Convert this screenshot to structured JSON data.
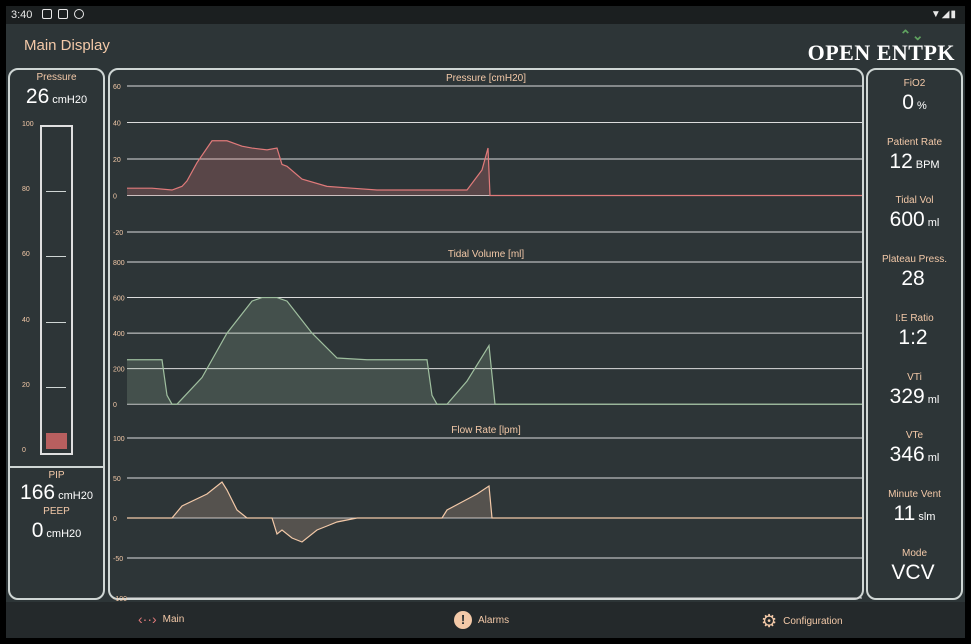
{
  "status_bar": {
    "time": "3:40"
  },
  "header": {
    "title": "Main Display",
    "logo_text": "OPEN ENTPK"
  },
  "left": {
    "pressure_label": "Pressure",
    "pressure_value": "26",
    "pressure_unit": "cmH20",
    "gauge": {
      "max": 100,
      "level_fraction": 0.05,
      "ticks": [
        "100",
        "80",
        "60",
        "40",
        "20",
        "0"
      ]
    },
    "pip_label": "PIP",
    "pip_value": "166",
    "pip_unit": "cmH20",
    "peep_label": "PEEP",
    "peep_value": "0",
    "peep_unit": "cmH20"
  },
  "chart_data": [
    {
      "type": "area",
      "title": "Pressure [cmH20]",
      "ylim": [
        -20,
        60
      ],
      "yticks": [
        "60",
        "40",
        "20",
        "0",
        "-20"
      ],
      "color": "#e07a7a",
      "x": [
        0,
        25,
        45,
        55,
        60,
        70,
        85,
        100,
        115,
        125,
        140,
        150,
        155,
        160,
        175,
        200,
        225,
        250,
        275,
        300,
        320,
        340,
        355,
        361,
        363,
        365,
        500,
        735
      ],
      "y": [
        4,
        4,
        3,
        5,
        8,
        18,
        30,
        30,
        27,
        26,
        25,
        26,
        17,
        16,
        9,
        5,
        4,
        3,
        3,
        3,
        3,
        3,
        14,
        26,
        0,
        0,
        0,
        0
      ]
    },
    {
      "type": "area",
      "title": "Tidal Volume [ml]",
      "ylim": [
        -100,
        800
      ],
      "yticks": [
        "800",
        "600",
        "400",
        "200",
        "0"
      ],
      "color": "#9fbf9f",
      "x": [
        0,
        35,
        40,
        45,
        50,
        75,
        100,
        125,
        135,
        150,
        160,
        185,
        210,
        240,
        270,
        300,
        305,
        310,
        320,
        340,
        362,
        368,
        735
      ],
      "y": [
        250,
        250,
        50,
        0,
        0,
        150,
        400,
        580,
        600,
        600,
        580,
        400,
        260,
        250,
        250,
        250,
        50,
        0,
        0,
        130,
        330,
        0,
        0
      ]
    },
    {
      "type": "area",
      "title": "Flow Rate [lpm]",
      "ylim": [
        -100,
        100
      ],
      "yticks": [
        "100",
        "50",
        "0",
        "-50",
        "-100"
      ],
      "color": "#f3c9a8",
      "x": [
        0,
        45,
        55,
        80,
        95,
        100,
        110,
        120,
        130,
        145,
        150,
        155,
        165,
        175,
        190,
        200,
        210,
        230,
        250,
        300,
        315,
        320,
        335,
        350,
        362,
        365,
        735
      ],
      "y": [
        0,
        0,
        15,
        30,
        45,
        35,
        10,
        0,
        0,
        0,
        -20,
        -15,
        -25,
        -30,
        -15,
        -10,
        -5,
        0,
        0,
        0,
        0,
        10,
        20,
        30,
        40,
        0,
        0
      ]
    }
  ],
  "right": {
    "fio2": {
      "label": "FiO2",
      "value": "0",
      "unit": "%"
    },
    "patient_rate": {
      "label": "Patient Rate",
      "value": "12",
      "unit": "BPM"
    },
    "tidal_vol": {
      "label": "Tidal Vol",
      "value": "600",
      "unit": "ml"
    },
    "plateau": {
      "label": "Plateau Press.",
      "value": "28",
      "unit": ""
    },
    "ie_ratio": {
      "label": "I:E Ratio",
      "value": "1:2",
      "unit": ""
    },
    "vti": {
      "label": "VTi",
      "value": "329",
      "unit": "ml"
    },
    "vte": {
      "label": "VTe",
      "value": "346",
      "unit": "ml"
    },
    "minute_vent": {
      "label": "Minute Vent",
      "value": "11",
      "unit": "slm"
    },
    "mode": {
      "label": "Mode",
      "value": "VCV",
      "unit": ""
    }
  },
  "nav": {
    "main": "Main",
    "alarms": "Alarms",
    "configuration": "Configuration"
  }
}
